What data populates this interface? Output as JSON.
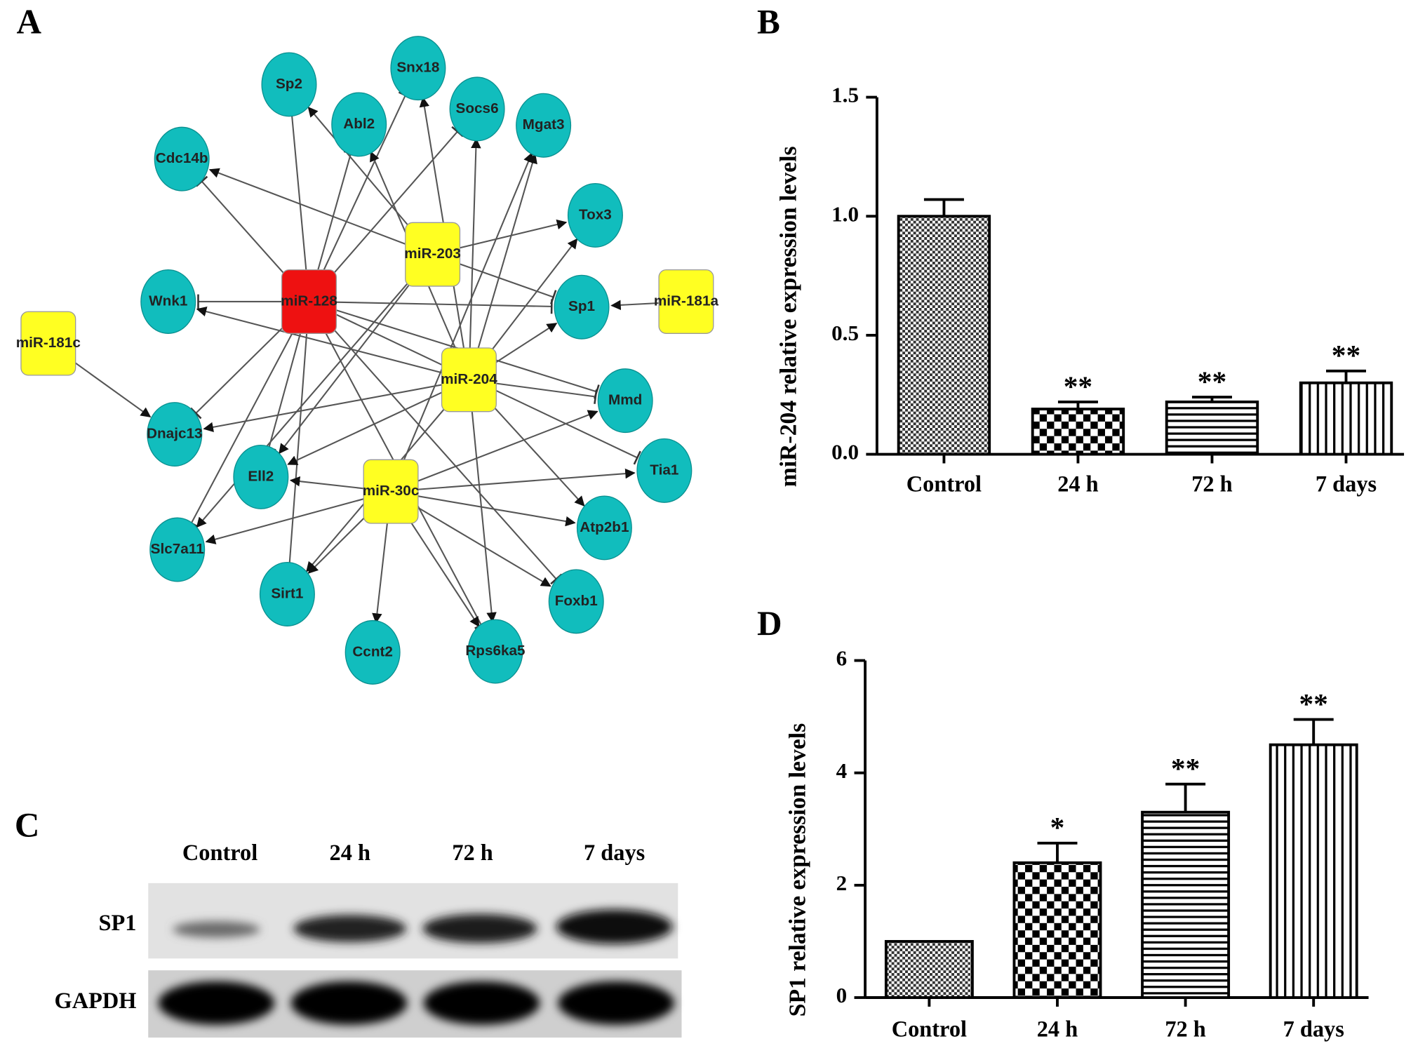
{
  "panel_labels": [
    "A",
    "B",
    "C",
    "D"
  ],
  "network": {
    "nodes": [
      "Sp2",
      "Snx18",
      "Abl2",
      "Socs6",
      "Mgat3",
      "Cdc14b",
      "Tox3",
      "miR-203",
      "miR-128",
      "Wnk1",
      "Sp1",
      "miR-181a",
      "miR-181c",
      "miR-204",
      "Mmd",
      "Dnajc13",
      "Ell2",
      "Tia1",
      "miR-30c",
      "Atp2b1",
      "Slc7a11",
      "Sirt1",
      "Foxb1",
      "Ccnt2",
      "Rps6ka5"
    ]
  },
  "chart_data": [
    {
      "type": "bar",
      "ylabel": "miR-204 relative expression levels",
      "categories": [
        "Control",
        "24 h",
        "72 h",
        "7 days"
      ],
      "values": [
        1.0,
        0.19,
        0.22,
        0.3
      ],
      "errors": [
        0.07,
        0.03,
        0.02,
        0.05
      ],
      "significance": [
        null,
        "**",
        "**",
        "**"
      ],
      "patterns": [
        "crosshatch",
        "checker",
        "horizontal",
        "vertical"
      ],
      "color": "#000000",
      "ylim": [
        0,
        1.5
      ],
      "yticks": [
        {
          "value": 0,
          "label": "0.0"
        },
        {
          "value": 0.5,
          "label": "0.5"
        },
        {
          "value": 1,
          "label": "1.0"
        },
        {
          "value": 1.5,
          "label": "1.5"
        }
      ]
    },
    {
      "type": "bar",
      "ylabel": "SP1 relative expression levels",
      "categories": [
        "Control",
        "24 h",
        "72 h",
        "7 days"
      ],
      "values": [
        1.0,
        2.4,
        3.3,
        4.5
      ],
      "errors": [
        0,
        0.35,
        0.5,
        0.45
      ],
      "significance": [
        null,
        "*",
        "**",
        "**"
      ],
      "patterns": [
        "crosshatch",
        "checker",
        "horizontal",
        "vertical"
      ],
      "color": "#000000",
      "ylim": [
        0,
        6
      ],
      "yticks": [
        0,
        2,
        4,
        6
      ]
    }
  ],
  "blot": {
    "columns": [
      "Control",
      "24 h",
      "72 h",
      "7 days"
    ],
    "rows": [
      "SP1",
      "GAPDH"
    ]
  }
}
